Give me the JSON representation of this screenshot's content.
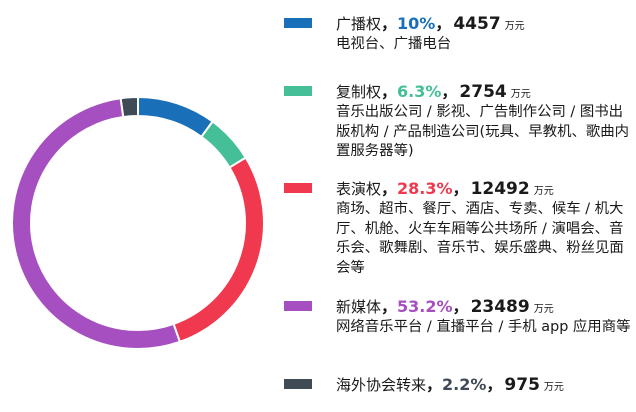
{
  "chart_data": {
    "type": "pie",
    "categories": [
      "广播权",
      "复制权",
      "表演权",
      "新媒体",
      "海外协会转来"
    ],
    "values": [
      4457,
      2754,
      12492,
      23489,
      975
    ],
    "percent_labels": [
      "10%",
      "6.3%",
      "28.3%",
      "53.2%",
      "2.2%"
    ],
    "amount_labels": [
      "4457",
      "2754",
      "12492",
      "23489",
      "975"
    ],
    "unit": "万元",
    "colors": [
      "#1a70b8",
      "#44bf97",
      "#f0384f",
      "#a54fc0",
      "#3f4a55"
    ],
    "descriptions": [
      "电视台、广播电台",
      "音乐出版公司 / 影视、广告制作公司 / 图书出版机构 / 产品制造公司(玩具、早教机、歌曲内置服务器等)",
      "商场、超市、餐厅、酒店、专卖、候车 / 机大厅、机舱、火车车厢等公共场所 / 演唱会、音乐会、歌舞剧、音乐节、娱乐盛典、粉丝见面会等",
      "网络音乐平台 / 直播平台 / 手机 app 应用商等",
      ""
    ],
    "separator": "，",
    "legend_position": "right",
    "title": ""
  }
}
